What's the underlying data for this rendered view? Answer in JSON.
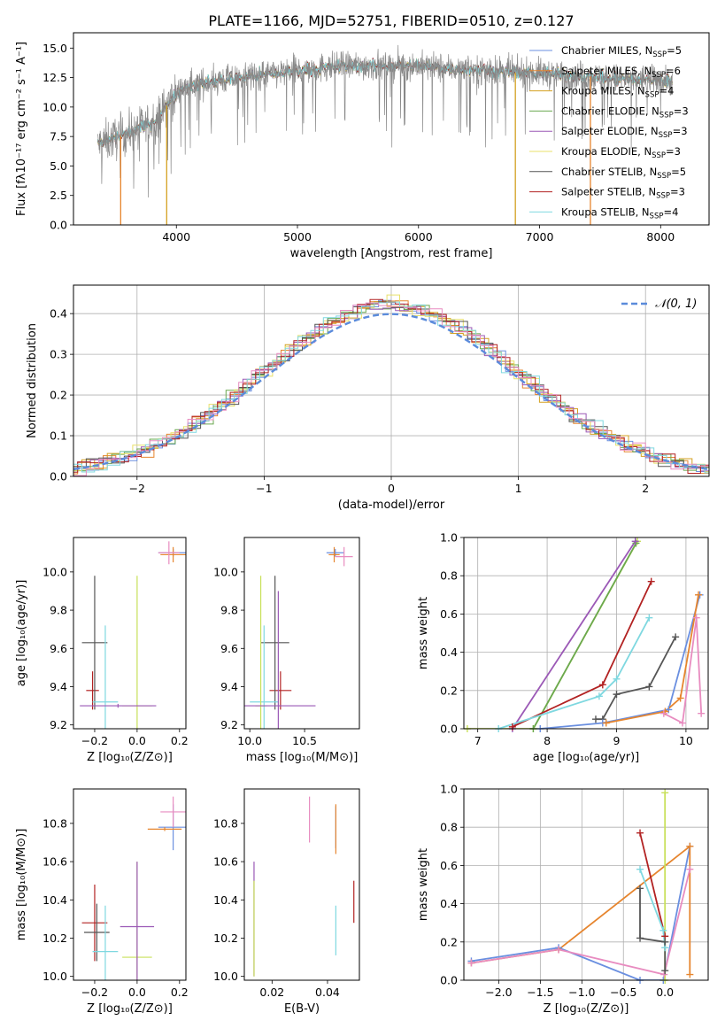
{
  "figure_title": "PLATE=1166, MJD=52751, FIBERID=0510, z=0.127",
  "colors": {
    "Chabrier MILES": "#6a8fe0",
    "Salpeter MILES": "#e6852e",
    "Kroupa MILES": "#d4a020",
    "Chabrier ELODIE": "#6aa84f",
    "Salpeter ELODIE": "#9b59b6",
    "Kroupa ELODIE": "#e8e06a",
    "Chabrier STELIB": "#555555",
    "Salpeter STELIB": "#b22222",
    "Kroupa STELIB": "#7fd8e0",
    "pink": "#e88cc0",
    "lime": "#c8e05a",
    "grid": "#b0b0b0",
    "data": "#888888"
  },
  "chart_data": [
    {
      "id": "spectrum",
      "type": "line",
      "title": "PLATE=1166, MJD=52751, FIBERID=0510, z=0.127",
      "xlabel": "wavelength [Angstrom, rest frame]",
      "ylabel": "Flux [fλ10⁻¹⁷ erg cm⁻² s⁻¹ A⁻¹]",
      "xlim": [
        3150,
        8400
      ],
      "ylim": [
        0,
        16.3
      ],
      "xticks": [
        4000,
        5000,
        6000,
        7000,
        8000
      ],
      "yticks": [
        0.0,
        2.5,
        5.0,
        7.5,
        10.0,
        12.5,
        15.0
      ],
      "grid": false,
      "legend_position": "right",
      "legend": [
        {
          "label": "Chabrier MILES, N",
          "sub": "SSP",
          "suffix": "=5"
        },
        {
          "label": "Salpeter MILES, N",
          "sub": "SSP",
          "suffix": "=6"
        },
        {
          "label": "Kroupa MILES, N",
          "sub": "SSP",
          "suffix": "=4"
        },
        {
          "label": "Chabrier ELODIE, N",
          "sub": "SSP",
          "suffix": "=3"
        },
        {
          "label": "Salpeter ELODIE, N",
          "sub": "SSP",
          "suffix": "=3"
        },
        {
          "label": "Kroupa ELODIE, N",
          "sub": "SSP",
          "suffix": "=3"
        },
        {
          "label": "Chabrier STELIB, N",
          "sub": "SSP",
          "suffix": "=5"
        },
        {
          "label": "Salpeter STELIB, N",
          "sub": "SSP",
          "suffix": "=3"
        },
        {
          "label": "Kroupa STELIB, N",
          "sub": "SSP",
          "suffix": "=4"
        }
      ],
      "continuum": {
        "x": [
          3350,
          3500,
          3700,
          3850,
          3950,
          4050,
          4200,
          4400,
          4600,
          4800,
          5000,
          5200,
          5400,
          5600,
          5800,
          6000,
          6200,
          6400,
          6600,
          6800,
          7000,
          7200,
          7400,
          7600,
          7800,
          8000,
          8100
        ],
        "y": [
          6.8,
          7.4,
          8.2,
          9.0,
          10.6,
          11.6,
          12.0,
          12.3,
          12.6,
          12.8,
          13.1,
          13.3,
          13.5,
          13.5,
          13.5,
          13.5,
          13.3,
          13.2,
          13.1,
          12.9,
          12.9,
          12.7,
          12.6,
          12.4,
          12.3,
          12.3,
          12.2
        ]
      },
      "dips": [
        {
          "x": 3540,
          "color": "#e6852e"
        },
        {
          "x": 3920,
          "color": "#d4a020"
        },
        {
          "x": 6800,
          "color": "#d4a020"
        },
        {
          "x": 7420,
          "color": "#e6852e"
        }
      ]
    },
    {
      "id": "residuals",
      "type": "histogram",
      "xlabel": "(data-model)/error",
      "ylabel": "Normed distribution",
      "xlim": [
        -2.5,
        2.5
      ],
      "ylim": [
        0,
        0.47
      ],
      "xticks": [
        -2,
        -1,
        0,
        1,
        2
      ],
      "yticks": [
        0.0,
        0.1,
        0.2,
        0.3,
        0.4
      ],
      "grid": true,
      "legend_position": "top-right",
      "legend_label": "𝒩(0, 1)",
      "reference_curve": "standard normal N(0,1)",
      "bin_width": 0.1
    },
    {
      "id": "age-vs-Z",
      "type": "errorbar",
      "xlabel": "Z [log₁₀(Z/Z⊙)]",
      "ylabel": "age  [log₁₀(age/yr)]",
      "xlim": [
        -0.3,
        0.23
      ],
      "ylim": [
        9.18,
        10.18
      ],
      "xticks": [
        -0.2,
        0.0,
        0.2
      ],
      "yticks": [
        9.2,
        9.4,
        9.6,
        9.8,
        10.0
      ],
      "points": [
        {
          "x": 0.17,
          "y": 10.1,
          "xerr": 0.07,
          "yerr": 0.02,
          "color": "#6a8fe0"
        },
        {
          "x": 0.17,
          "y": 10.09,
          "xerr": 0.06,
          "yerr": 0.04,
          "color": "#e6852e"
        },
        {
          "x": 0.15,
          "y": 10.1,
          "xerr": 0.05,
          "yerr": 0.06,
          "color": "#e88cc0"
        },
        {
          "x": -0.21,
          "y": 9.38,
          "xerr": 0.03,
          "yerr": 0.1,
          "color": "#b22222"
        },
        {
          "x": -0.2,
          "y": 9.63,
          "xerr": 0.06,
          "yerr": 0.35,
          "color": "#555555"
        },
        {
          "x": -0.15,
          "y": 9.32,
          "xerr": 0.06,
          "yerr": 0.4,
          "color": "#7fd8e0"
        },
        {
          "x": 0.0,
          "y": 9.3,
          "xerr": 0.07,
          "yerr": 0.68,
          "color": "#c8e05a"
        },
        {
          "x": -0.09,
          "y": 9.3,
          "xerr": 0.18,
          "yerr": 0.01,
          "color": "#9b59b6"
        }
      ]
    },
    {
      "id": "age-vs-mass",
      "type": "errorbar",
      "xlabel": "mass [log₁₀(M/M⊙)]",
      "ylabel": "",
      "xlim": [
        9.95,
        11.0
      ],
      "ylim": [
        9.18,
        10.18
      ],
      "xticks": [
        10.0,
        10.5
      ],
      "yticks": [
        9.2,
        9.4,
        9.6,
        9.8,
        10.0
      ],
      "points": [
        {
          "x": 10.78,
          "y": 10.1,
          "xerr": 0.08,
          "yerr": 0.02,
          "color": "#6a8fe0"
        },
        {
          "x": 10.77,
          "y": 10.09,
          "xerr": 0.05,
          "yerr": 0.04,
          "color": "#e6852e"
        },
        {
          "x": 10.86,
          "y": 10.08,
          "xerr": 0.08,
          "yerr": 0.05,
          "color": "#e88cc0"
        },
        {
          "x": 10.28,
          "y": 9.38,
          "xerr": 0.1,
          "yerr": 0.1,
          "color": "#b22222"
        },
        {
          "x": 10.23,
          "y": 9.63,
          "xerr": 0.13,
          "yerr": 0.35,
          "color": "#555555"
        },
        {
          "x": 10.13,
          "y": 9.32,
          "xerr": 0.13,
          "yerr": 0.4,
          "color": "#7fd8e0"
        },
        {
          "x": 10.1,
          "y": 9.3,
          "xerr": 0.05,
          "yerr": 0.68,
          "color": "#c8e05a"
        },
        {
          "x": 10.26,
          "y": 9.3,
          "xerr": 0.34,
          "yerr": 0.6,
          "color": "#9b59b6"
        }
      ]
    },
    {
      "id": "weight-vs-age",
      "type": "line",
      "xlabel": "age  [log₁₀(age/yr)]",
      "ylabel": "mass weight",
      "xlim": [
        6.8,
        10.32
      ],
      "ylim": [
        0,
        1.0
      ],
      "xticks": [
        7,
        8,
        9,
        10
      ],
      "yticks": [
        0.0,
        0.2,
        0.4,
        0.6,
        0.8,
        1.0
      ],
      "grid": true,
      "series": [
        {
          "color": "#c8e05a",
          "x": [
            6.85,
            7.8,
            9.3
          ],
          "y": [
            0.0,
            0.0,
            0.98
          ]
        },
        {
          "color": "#6aa84f",
          "x": [
            7.8,
            9.28
          ],
          "y": [
            0.0,
            0.97
          ]
        },
        {
          "color": "#9b59b6",
          "x": [
            7.5,
            9.27
          ],
          "y": [
            0.0,
            0.98
          ]
        },
        {
          "color": "#b22222",
          "x": [
            7.5,
            8.8,
            9.5
          ],
          "y": [
            0.01,
            0.23,
            0.77
          ]
        },
        {
          "color": "#7fd8e0",
          "x": [
            7.3,
            8.75,
            9.0,
            9.47
          ],
          "y": [
            0.0,
            0.17,
            0.26,
            0.58
          ]
        },
        {
          "color": "#555555",
          "x": [
            8.7,
            8.8,
            9.0,
            9.47,
            9.85
          ],
          "y": [
            0.05,
            0.05,
            0.18,
            0.22,
            0.48
          ]
        },
        {
          "color": "#6a8fe0",
          "x": [
            7.9,
            8.8,
            9.75,
            10.2
          ],
          "y": [
            0.0,
            0.03,
            0.1,
            0.7
          ]
        },
        {
          "color": "#e6852e",
          "x": [
            8.85,
            9.7,
            9.92,
            10.18
          ],
          "y": [
            0.03,
            0.09,
            0.16,
            0.7
          ]
        },
        {
          "color": "#e88cc0",
          "x": [
            9.68,
            9.95,
            10.15,
            10.22
          ],
          "y": [
            0.08,
            0.03,
            0.58,
            0.08
          ]
        }
      ]
    },
    {
      "id": "mass-vs-Z",
      "type": "errorbar",
      "xlabel": "Z [log₁₀(Z/Z⊙)]",
      "ylabel": "mass [log₁₀(M/M⊙)]",
      "xlim": [
        -0.3,
        0.23
      ],
      "ylim": [
        9.98,
        10.98
      ],
      "xticks": [
        -0.2,
        0.0,
        0.2
      ],
      "yticks": [
        10.0,
        10.2,
        10.4,
        10.6,
        10.8
      ],
      "points": [
        {
          "x": 0.17,
          "y": 10.78,
          "xerr": 0.07,
          "yerr": 0.12,
          "color": "#6a8fe0"
        },
        {
          "x": 0.13,
          "y": 10.77,
          "xerr": 0.08,
          "yerr": 0.01,
          "color": "#e6852e"
        },
        {
          "x": 0.17,
          "y": 10.86,
          "xerr": 0.06,
          "yerr": 0.08,
          "color": "#e88cc0"
        },
        {
          "x": -0.2,
          "y": 10.28,
          "xerr": 0.06,
          "yerr": 0.2,
          "color": "#b22222"
        },
        {
          "x": -0.19,
          "y": 10.23,
          "xerr": 0.06,
          "yerr": 0.15,
          "color": "#555555"
        },
        {
          "x": -0.15,
          "y": 10.13,
          "xerr": 0.06,
          "yerr": 0.24,
          "color": "#7fd8e0"
        },
        {
          "x": 0.0,
          "y": 10.1,
          "xerr": 0.07,
          "yerr": 0.5,
          "color": "#c8e05a"
        },
        {
          "x": 0.0,
          "y": 10.26,
          "xerr": 0.08,
          "yerr": 0.34,
          "color": "#9b59b6"
        }
      ]
    },
    {
      "id": "mass-vs-EBV",
      "type": "errorbar",
      "xlabel": "E(B-V)",
      "ylabel": "",
      "xlim": [
        0.01,
        0.0515
      ],
      "ylim": [
        9.98,
        10.98
      ],
      "xticks": [
        0.02,
        0.04
      ],
      "yticks": [
        10.0,
        10.2,
        10.4,
        10.6,
        10.8
      ],
      "points": [
        {
          "x": 0.043,
          "y": 10.78,
          "yerr": 0.11,
          "color": "#6a8fe0"
        },
        {
          "x": 0.043,
          "y": 10.77,
          "yerr": 0.13,
          "color": "#e6852e"
        },
        {
          "x": 0.0335,
          "y": 10.82,
          "yerr": 0.12,
          "color": "#e88cc0"
        },
        {
          "x": 0.0495,
          "y": 10.39,
          "yerr": 0.11,
          "color": "#b22222"
        },
        {
          "x": 0.043,
          "y": 10.24,
          "yerr": 0.13,
          "color": "#7fd8e0"
        },
        {
          "x": 0.0135,
          "y": 10.3,
          "yerr": 0.3,
          "color": "#9b59b6"
        },
        {
          "x": 0.0135,
          "y": 10.25,
          "yerr": 0.25,
          "color": "#c8e05a"
        }
      ]
    },
    {
      "id": "weight-vs-Z",
      "type": "line",
      "xlabel": "Z [log₁₀(Z/Z⊙)]",
      "ylabel": "mass weight",
      "xlim": [
        -2.42,
        0.52
      ],
      "ylim": [
        0,
        1.0
      ],
      "xticks": [
        -2.0,
        -1.5,
        -1.0,
        -0.5,
        0.0
      ],
      "yticks": [
        0.0,
        0.2,
        0.4,
        0.6,
        0.8,
        1.0
      ],
      "grid": true,
      "series": [
        {
          "color": "#6a8fe0",
          "x": [
            -2.33,
            -1.28,
            -0.3,
            -0.02,
            0.3
          ],
          "y": [
            0.1,
            0.17,
            0.0,
            0.0,
            0.7
          ]
        },
        {
          "color": "#e6852e",
          "x": [
            -2.33,
            -1.28,
            0.3,
            0.3
          ],
          "y": [
            0.09,
            0.16,
            0.7,
            0.03
          ]
        },
        {
          "color": "#e88cc0",
          "x": [
            -2.33,
            -1.28,
            -0.01,
            0.3
          ],
          "y": [
            0.09,
            0.16,
            0.03,
            0.58
          ]
        },
        {
          "color": "#c8e05a",
          "x": [
            0.0,
            0.0
          ],
          "y": [
            0.0,
            0.98
          ]
        },
        {
          "color": "#b22222",
          "x": [
            -0.3,
            0.0
          ],
          "y": [
            0.77,
            0.23
          ]
        },
        {
          "color": "#7fd8e0",
          "x": [
            -0.3,
            -0.02,
            0.0
          ],
          "y": [
            0.58,
            0.26,
            0.17
          ]
        },
        {
          "color": "#555555",
          "x": [
            -0.3,
            -0.3,
            0.0,
            0.0
          ],
          "y": [
            0.48,
            0.22,
            0.2,
            0.05
          ]
        }
      ]
    }
  ]
}
